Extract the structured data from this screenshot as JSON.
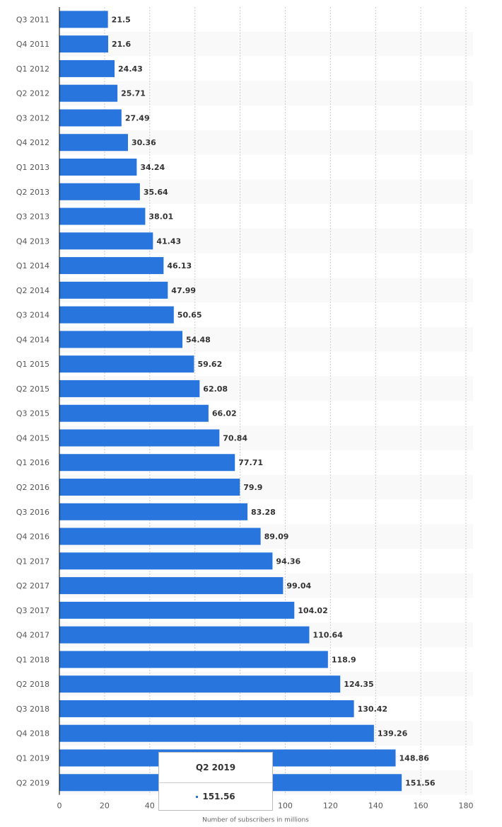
{
  "chart_data": {
    "type": "bar",
    "orientation": "horizontal",
    "categories": [
      "Q3 2011",
      "Q4 2011",
      "Q1 2012",
      "Q2 2012",
      "Q3 2012",
      "Q4 2012",
      "Q1 2013",
      "Q2 2013",
      "Q3 2013",
      "Q4 2013",
      "Q1 2014",
      "Q2 2014",
      "Q3 2014",
      "Q4 2014",
      "Q1 2015",
      "Q2 2015",
      "Q3 2015",
      "Q4 2015",
      "Q1 2016",
      "Q2 2016",
      "Q3 2016",
      "Q4 2016",
      "Q1 2017",
      "Q2 2017",
      "Q3 2017",
      "Q4 2017",
      "Q1 2018",
      "Q2 2018",
      "Q3 2018",
      "Q4 2018",
      "Q1 2019",
      "Q2 2019"
    ],
    "values": [
      21.5,
      21.6,
      24.43,
      25.71,
      27.49,
      30.36,
      34.24,
      35.64,
      38.01,
      41.43,
      46.13,
      47.99,
      50.65,
      54.48,
      59.62,
      62.08,
      66.02,
      70.84,
      77.71,
      79.9,
      83.28,
      89.09,
      94.36,
      99.04,
      104.02,
      110.64,
      118.9,
      124.35,
      130.42,
      139.26,
      148.86,
      151.56
    ],
    "labels": [
      "21.5",
      "21.6",
      "24.43",
      "25.71",
      "27.49",
      "30.36",
      "34.24",
      "35.64",
      "38.01",
      "41.43",
      "46.13",
      "47.99",
      "50.65",
      "54.48",
      "59.62",
      "62.08",
      "66.02",
      "70.84",
      "77.71",
      "79.9",
      "83.28",
      "89.09",
      "94.36",
      "99.04",
      "104.02",
      "110.64",
      "118.9",
      "124.35",
      "130.42",
      "139.26",
      "148.86",
      "151.56"
    ],
    "xlabel": "Number of subscribers in millions",
    "xlim": [
      0,
      180
    ],
    "xticks": [
      "0",
      "20",
      "40",
      "60",
      "80",
      "100",
      "120",
      "140",
      "160",
      "180"
    ],
    "grid": true,
    "bar_color": "#2876dd"
  },
  "tooltip": {
    "title": "Q2 2019",
    "value": "151.56"
  }
}
